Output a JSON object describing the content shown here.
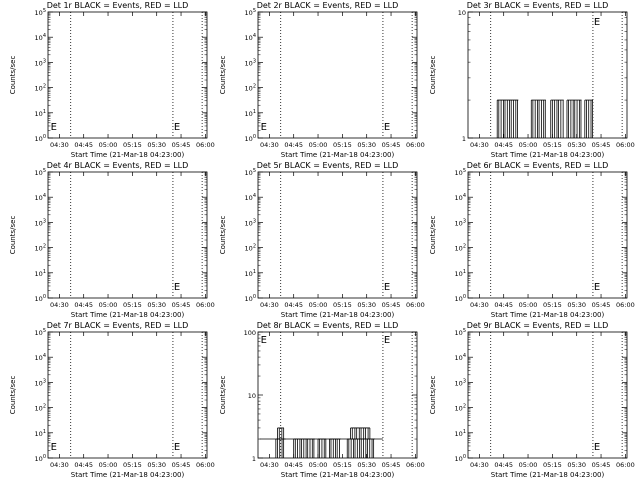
{
  "chart_data": [
    {
      "type": "line",
      "title": "Det 1r BLACK = Events, RED = LLD",
      "ylabel": "Counts/sec",
      "xlabel": "Start Time (21-Mar-18 04:23:00)",
      "x_ticks": [
        "04:30",
        "04:45",
        "05:00",
        "05:15",
        "05:30",
        "05:45",
        "06:00"
      ],
      "y_scale": "log",
      "ylim": [
        1,
        100000
      ],
      "y_ticks": [
        "10^0",
        "10^1",
        "10^2",
        "10^3",
        "10^4",
        "10^5"
      ],
      "vlines": [
        "04:37",
        "05:40",
        "05:58"
      ],
      "markers": [
        {
          "t": "04:24",
          "label": "E"
        },
        {
          "t": "05:40",
          "label": "E"
        }
      ],
      "series": []
    },
    {
      "type": "line",
      "title": "Det 2r BLACK = Events, RED = LLD",
      "ylabel": "Counts/sec",
      "xlabel": "Start Time (21-Mar-18 04:23:00)",
      "x_ticks": [
        "04:30",
        "04:45",
        "05:00",
        "05:15",
        "05:30",
        "05:45",
        "06:00"
      ],
      "y_scale": "log",
      "ylim": [
        1,
        100000
      ],
      "y_ticks": [
        "10^0",
        "10^1",
        "10^2",
        "10^3",
        "10^4",
        "10^5"
      ],
      "vlines": [
        "04:37",
        "05:40",
        "05:58"
      ],
      "markers": [
        {
          "t": "04:24",
          "label": "E"
        },
        {
          "t": "05:40",
          "label": "E"
        }
      ],
      "series": []
    },
    {
      "type": "line",
      "title": "Det 3r BLACK = Events, RED = LLD",
      "ylabel": "Counts/sec",
      "xlabel": "Start Time (21-Mar-18 04:23:00)",
      "x_ticks": [
        "04:30",
        "04:45",
        "05:00",
        "05:15",
        "05:30",
        "05:45",
        "06:00"
      ],
      "y_scale": "log",
      "ylim": [
        1,
        10
      ],
      "y_ticks": [
        "1",
        "10"
      ],
      "vlines": [
        "04:37",
        "05:40",
        "05:58"
      ],
      "markers": [
        {
          "t": "05:40",
          "label": "E"
        }
      ],
      "series": [
        {
          "kind": "bursts",
          "value": 2,
          "segments": [
            [
              "04:41",
              "04:54"
            ],
            [
              "05:02",
              "05:11"
            ],
            [
              "05:14",
              "05:22"
            ],
            [
              "05:24",
              "05:33"
            ],
            [
              "05:35",
              "05:40"
            ]
          ]
        }
      ]
    },
    {
      "type": "line",
      "title": "Det 4r BLACK = Events, RED = LLD",
      "ylabel": "Counts/sec",
      "xlabel": "Start Time (21-Mar-18 04:23:00)",
      "x_ticks": [
        "04:30",
        "04:45",
        "05:00",
        "05:15",
        "05:30",
        "05:45",
        "06:00"
      ],
      "y_scale": "log",
      "ylim": [
        1,
        100000
      ],
      "y_ticks": [
        "10^0",
        "10^1",
        "10^2",
        "10^3",
        "10^4",
        "10^5"
      ],
      "vlines": [
        "04:37",
        "05:40",
        "05:58"
      ],
      "markers": [
        {
          "t": "05:40",
          "label": "E"
        }
      ],
      "series": []
    },
    {
      "type": "line",
      "title": "Det 5r BLACK = Events, RED = LLD",
      "ylabel": "Counts/sec",
      "xlabel": "Start Time (21-Mar-18 04:23:00)",
      "x_ticks": [
        "04:30",
        "04:45",
        "05:00",
        "05:15",
        "05:30",
        "05:45",
        "06:00"
      ],
      "y_scale": "log",
      "ylim": [
        1,
        100000
      ],
      "y_ticks": [
        "10^0",
        "10^1",
        "10^2",
        "10^3",
        "10^4",
        "10^5"
      ],
      "vlines": [
        "04:37",
        "05:40",
        "05:58"
      ],
      "markers": [
        {
          "t": "05:40",
          "label": "E"
        }
      ],
      "series": []
    },
    {
      "type": "line",
      "title": "Det 6r BLACK = Events, RED = LLD",
      "ylabel": "Counts/sec",
      "xlabel": "Start Time (21-Mar-18 04:23:00)",
      "x_ticks": [
        "04:30",
        "04:45",
        "05:00",
        "05:15",
        "05:30",
        "05:45",
        "06:00"
      ],
      "y_scale": "log",
      "ylim": [
        1,
        100000
      ],
      "y_ticks": [
        "10^0",
        "10^1",
        "10^2",
        "10^3",
        "10^4",
        "10^5"
      ],
      "vlines": [
        "04:37",
        "05:40",
        "05:58"
      ],
      "markers": [
        {
          "t": "05:40",
          "label": "E"
        }
      ],
      "series": []
    },
    {
      "type": "line",
      "title": "Det 7r BLACK = Events, RED = LLD",
      "ylabel": "Counts/sec",
      "xlabel": "Start Time (21-Mar-18 04:23:00)",
      "x_ticks": [
        "04:30",
        "04:45",
        "05:00",
        "05:15",
        "05:30",
        "05:45",
        "06:00"
      ],
      "y_scale": "log",
      "ylim": [
        1,
        100000
      ],
      "y_ticks": [
        "10^0",
        "10^1",
        "10^2",
        "10^3",
        "10^4",
        "10^5"
      ],
      "vlines": [
        "04:37",
        "05:40",
        "05:58"
      ],
      "markers": [
        {
          "t": "04:24",
          "label": "E"
        },
        {
          "t": "05:40",
          "label": "E"
        }
      ],
      "series": []
    },
    {
      "type": "line",
      "title": "Det 8r BLACK = Events, RED = LLD",
      "ylabel": "Counts/sec",
      "xlabel": "Start Time (21-Mar-18 04:23:00)",
      "x_ticks": [
        "04:30",
        "04:45",
        "05:00",
        "05:15",
        "05:30",
        "05:45",
        "06:00"
      ],
      "y_scale": "log",
      "ylim": [
        1,
        100
      ],
      "y_ticks": [
        "1",
        "10",
        "100"
      ],
      "vlines": [
        "04:37",
        "05:40",
        "05:58"
      ],
      "markers": [
        {
          "t": "04:24",
          "label": "E"
        },
        {
          "t": "05:40",
          "label": "E"
        }
      ],
      "series": [
        {
          "kind": "bursts",
          "value": 2,
          "baseline_start": "04:24",
          "baseline_end": "05:40",
          "segments": [
            [
              "04:34",
              "04:40"
            ],
            [
              "04:45",
              "04:58"
            ],
            [
              "05:00",
              "05:05"
            ],
            [
              "05:07",
              "05:14"
            ],
            [
              "05:18",
              "05:35"
            ]
          ],
          "peaks": [
            [
              "04:35",
              "04:39",
              3
            ],
            [
              "05:20",
              "05:32",
              3
            ]
          ]
        }
      ]
    },
    {
      "type": "line",
      "title": "Det 9r BLACK = Events, RED = LLD",
      "ylabel": "Counts/sec",
      "xlabel": "Start Time (21-Mar-18 04:23:00)",
      "x_ticks": [
        "04:30",
        "04:45",
        "05:00",
        "05:15",
        "05:30",
        "05:45",
        "06:00"
      ],
      "y_scale": "log",
      "ylim": [
        1,
        100000
      ],
      "y_ticks": [
        "10^0",
        "10^1",
        "10^2",
        "10^3",
        "10^4",
        "10^5"
      ],
      "vlines": [
        "04:37",
        "05:40",
        "05:58"
      ],
      "markers": [
        {
          "t": "05:40",
          "label": "E"
        }
      ],
      "series": []
    }
  ]
}
